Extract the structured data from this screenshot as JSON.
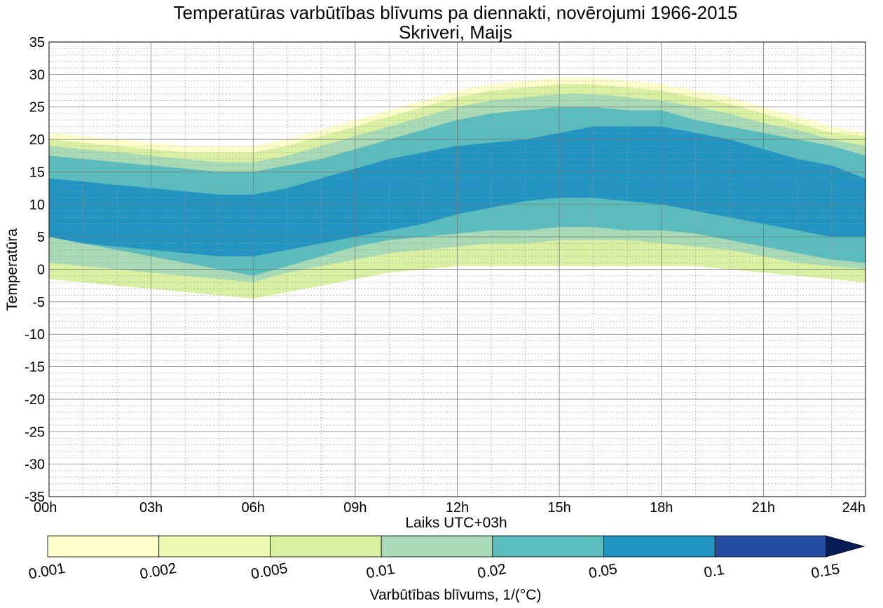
{
  "chart_data": {
    "type": "contourf",
    "title": "Temperatūras varbūtības blīvums pa diennakti, novērojumi 1966-2015",
    "subtitle": "Skriveri, Maijs",
    "xlabel": "Laiks UTC+03h",
    "ylabel": "Temperatūra",
    "x_ticks": [
      "00h",
      "03h",
      "06h",
      "09h",
      "12h",
      "15h",
      "18h",
      "21h",
      "24h"
    ],
    "xlim": [
      0,
      24
    ],
    "ylim": [
      -35,
      35
    ],
    "y_ticks": [
      35,
      30,
      25,
      20,
      15,
      10,
      5,
      0,
      -5,
      -10,
      -15,
      -20,
      -25,
      -30,
      -35
    ],
    "grid": "major solid, minor dotted",
    "hours": [
      0,
      1,
      2,
      3,
      4,
      5,
      6,
      7,
      8,
      9,
      10,
      11,
      12,
      13,
      14,
      15,
      16,
      17,
      18,
      19,
      20,
      21,
      22,
      23,
      24
    ],
    "density_bands": [
      {
        "level": 0.001,
        "color": "#ffffcc",
        "upper": [
          21.0,
          20.5,
          20.0,
          19.5,
          19.0,
          19.0,
          19.0,
          20.0,
          21.5,
          23.0,
          24.5,
          26.0,
          27.5,
          28.5,
          29.0,
          29.5,
          29.5,
          29.0,
          28.5,
          27.5,
          26.5,
          25.0,
          23.5,
          22.0,
          21.0
        ],
        "lower": [
          -1.5,
          -2.0,
          -2.5,
          -3.0,
          -3.5,
          -4.0,
          -4.5,
          -3.5,
          -2.5,
          -1.5,
          -0.5,
          0.0,
          0.5,
          0.5,
          0.5,
          0.5,
          0.5,
          0.5,
          0.5,
          0.5,
          0.0,
          -0.5,
          -1.0,
          -1.5,
          -2.0
        ]
      },
      {
        "level": 0.002,
        "color": "#edf8b1",
        "upper": [
          20.0,
          19.5,
          19.0,
          18.5,
          18.0,
          18.0,
          18.0,
          19.0,
          20.5,
          22.0,
          23.5,
          25.0,
          26.5,
          27.5,
          28.0,
          28.5,
          28.5,
          28.0,
          27.5,
          26.5,
          25.5,
          24.0,
          22.5,
          21.0,
          20.5
        ]
      },
      {
        "level": 0.005,
        "color": "#d9f0a3"
      },
      {
        "level": 0.01,
        "color": "#a8dbb5",
        "upper": [
          19.0,
          18.5,
          18.0,
          17.5,
          17.0,
          16.5,
          16.5,
          17.5,
          19.0,
          20.5,
          22.0,
          23.5,
          25.0,
          26.0,
          26.5,
          27.0,
          27.0,
          26.5,
          26.0,
          25.0,
          24.0,
          22.5,
          21.5,
          20.0,
          19.0
        ],
        "lower": [
          1.0,
          0.5,
          0.0,
          -0.5,
          -1.0,
          -1.5,
          -2.0,
          -0.5,
          0.5,
          1.5,
          2.5,
          3.0,
          3.5,
          4.0,
          4.0,
          4.5,
          4.5,
          4.5,
          4.0,
          3.5,
          3.0,
          2.0,
          1.0,
          0.5,
          0.0
        ]
      },
      {
        "level": 0.02,
        "color": "#5bbcbd",
        "upper": [
          17.5,
          17.0,
          16.5,
          16.0,
          15.5,
          15.0,
          15.0,
          16.0,
          17.0,
          18.5,
          20.0,
          21.5,
          23.0,
          24.0,
          24.5,
          25.0,
          25.0,
          24.5,
          24.5,
          23.0,
          22.0,
          21.0,
          20.0,
          19.0,
          17.5
        ],
        "lower": [
          5.0,
          4.0,
          3.0,
          2.0,
          1.0,
          0.0,
          -1.0,
          0.5,
          2.0,
          3.5,
          4.5,
          5.0,
          5.5,
          6.0,
          6.0,
          6.5,
          6.5,
          6.0,
          6.0,
          5.5,
          4.5,
          3.5,
          2.5,
          1.5,
          1.0
        ]
      },
      {
        "level": 0.05,
        "color": "#2194c2",
        "upper": [
          14.0,
          13.5,
          13.0,
          12.5,
          12.0,
          11.5,
          11.5,
          12.5,
          14.0,
          15.5,
          17.0,
          18.0,
          19.0,
          19.5,
          20.0,
          21.0,
          22.0,
          22.0,
          22.0,
          21.0,
          20.0,
          18.5,
          17.0,
          16.0,
          14.0
        ],
        "lower": [
          5.0,
          4.0,
          3.5,
          3.0,
          2.5,
          2.0,
          2.0,
          3.0,
          4.0,
          5.0,
          6.0,
          7.0,
          8.5,
          9.5,
          10.5,
          11.0,
          11.0,
          10.5,
          10.0,
          9.0,
          8.0,
          7.0,
          6.0,
          5.0,
          5.0
        ]
      }
    ],
    "colorbar": {
      "label": "Varbūtības blīvums, 1/(°C)",
      "levels": [
        "0.001",
        "0.002",
        "0.005",
        "0.01",
        "0.02",
        "0.05",
        "0.1",
        "0.15"
      ],
      "colors": [
        "#ffffcc",
        "#edf8b1",
        "#d9f0a3",
        "#a8dbb5",
        "#5bbcbd",
        "#2194c2",
        "#234da0"
      ],
      "extend_color": "#081d58",
      "extend": "max"
    }
  }
}
